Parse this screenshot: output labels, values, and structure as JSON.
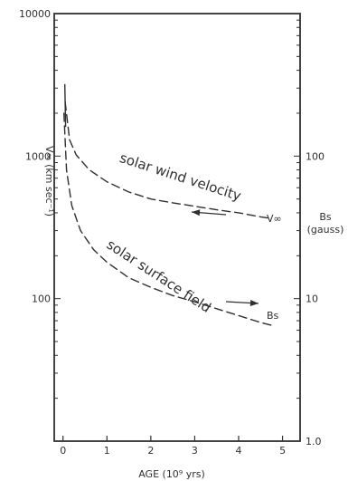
{
  "chart_data": {
    "type": "line",
    "xlabel": "AGE (10⁹ yrs)",
    "ylabel_left": "V∞ (km sec⁻¹)",
    "ylabel_right": "Bs (gauss)",
    "x_ticks": [
      "0",
      "1",
      "2",
      "3",
      "4",
      "5"
    ],
    "x_range": [
      -0.2,
      5.4
    ],
    "y_left_scale": "log",
    "y_left_range": [
      10000,
      10
    ],
    "y_left_ticks": [
      "10000",
      "1000",
      "100"
    ],
    "y_left_tick_values": [
      10000,
      1000,
      100
    ],
    "y_right_scale": "log",
    "y_right_ticks": [
      "100",
      "10",
      "1.0"
    ],
    "y_right_tick_values": [
      100,
      10,
      1.0
    ],
    "grid": false,
    "series": [
      {
        "name": "solar wind velocity",
        "axis": "left",
        "end_label": "V∞",
        "style": "dashed",
        "x": [
          0.05,
          0.15,
          0.3,
          0.6,
          1.0,
          1.5,
          2.0,
          2.5,
          3.0,
          3.5,
          4.0,
          4.5,
          4.75
        ],
        "y": [
          2400,
          1300,
          1020,
          800,
          660,
          560,
          500,
          470,
          445,
          420,
          400,
          375,
          365
        ]
      },
      {
        "name": "solar surface field",
        "axis": "right",
        "end_label": "Bs",
        "style": "dashed",
        "x": [
          0.02,
          0.08,
          0.2,
          0.4,
          0.7,
          1.0,
          1.5,
          2.0,
          2.5,
          3.0,
          3.5,
          4.0,
          4.5,
          4.75
        ],
        "y": [
          200,
          80,
          45,
          30,
          22,
          18,
          14,
          12,
          10.5,
          9.5,
          8.5,
          7.6,
          6.8,
          6.5
        ]
      }
    ],
    "annotations": [
      {
        "text": "solar wind velocity",
        "series": "solar wind velocity"
      },
      {
        "text": "solar surface field",
        "series": "solar surface field"
      }
    ]
  }
}
